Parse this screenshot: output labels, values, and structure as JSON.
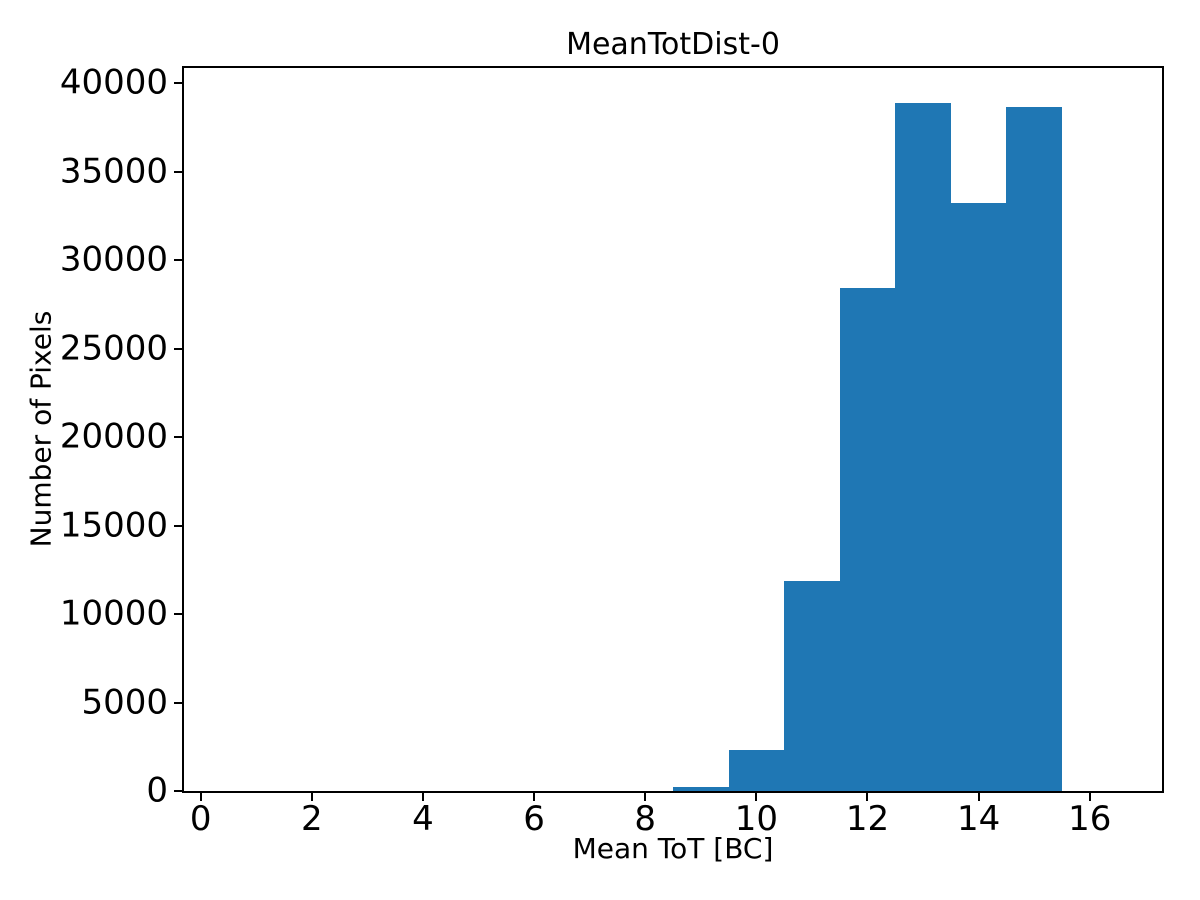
{
  "figure": {
    "background_color": "#ffffff",
    "text_color": "#000000",
    "spine_color": "#000000"
  },
  "chart_data": {
    "type": "bar",
    "subtype": "histogram",
    "title": "MeanTotDist-0",
    "xlabel": "Mean ToT [BC]",
    "ylabel": "Number of Pixels",
    "bar_color": "#1f77b4",
    "bin_edges": [
      8.5,
      9.5,
      10.5,
      11.5,
      12.5,
      13.5,
      14.5,
      15.5
    ],
    "counts": [
      250,
      2300,
      11850,
      28400,
      38880,
      33250,
      38650
    ],
    "xlim": [
      -0.3,
      17.3
    ],
    "ylim": [
      0,
      40850
    ],
    "x_tick_values": [
      0,
      2,
      4,
      6,
      8,
      10,
      12,
      14,
      16
    ],
    "x_tick_labels": [
      "0",
      "2",
      "4",
      "6",
      "8",
      "10",
      "12",
      "14",
      "16"
    ],
    "y_tick_values": [
      0,
      5000,
      10000,
      15000,
      20000,
      25000,
      30000,
      35000,
      40000
    ],
    "y_tick_labels": [
      "0",
      "5000",
      "10000",
      "15000",
      "20000",
      "25000",
      "30000",
      "35000",
      "40000"
    ],
    "grid": false,
    "legend": null
  }
}
